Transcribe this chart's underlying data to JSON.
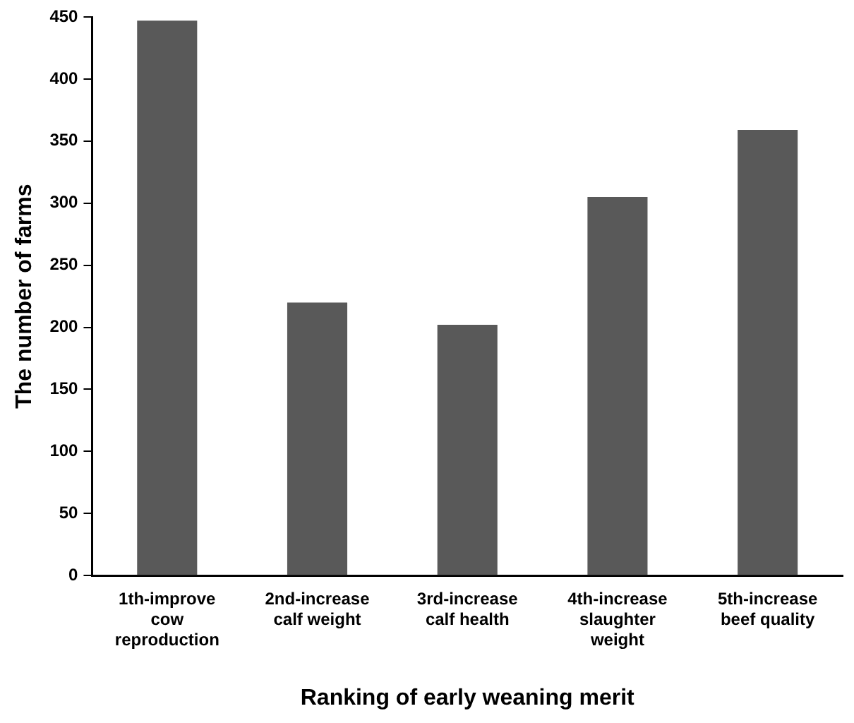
{
  "chart_data": {
    "type": "bar",
    "xlabel": "Ranking of early weaning merit",
    "ylabel": "The number of farms",
    "categories": [
      "1th-improve cow reproduction",
      "2nd-increase calf weight",
      "3rd-increase calf health",
      "4th-increase slaughter weight",
      "5th-increase beef quality"
    ],
    "values": [
      447,
      220,
      202,
      305,
      359
    ],
    "color": "#595959",
    "ylim": [
      0,
      450
    ],
    "yticks": [
      0,
      50,
      100,
      150,
      200,
      250,
      300,
      350,
      400,
      450
    ],
    "grid": false,
    "legend": false
  }
}
